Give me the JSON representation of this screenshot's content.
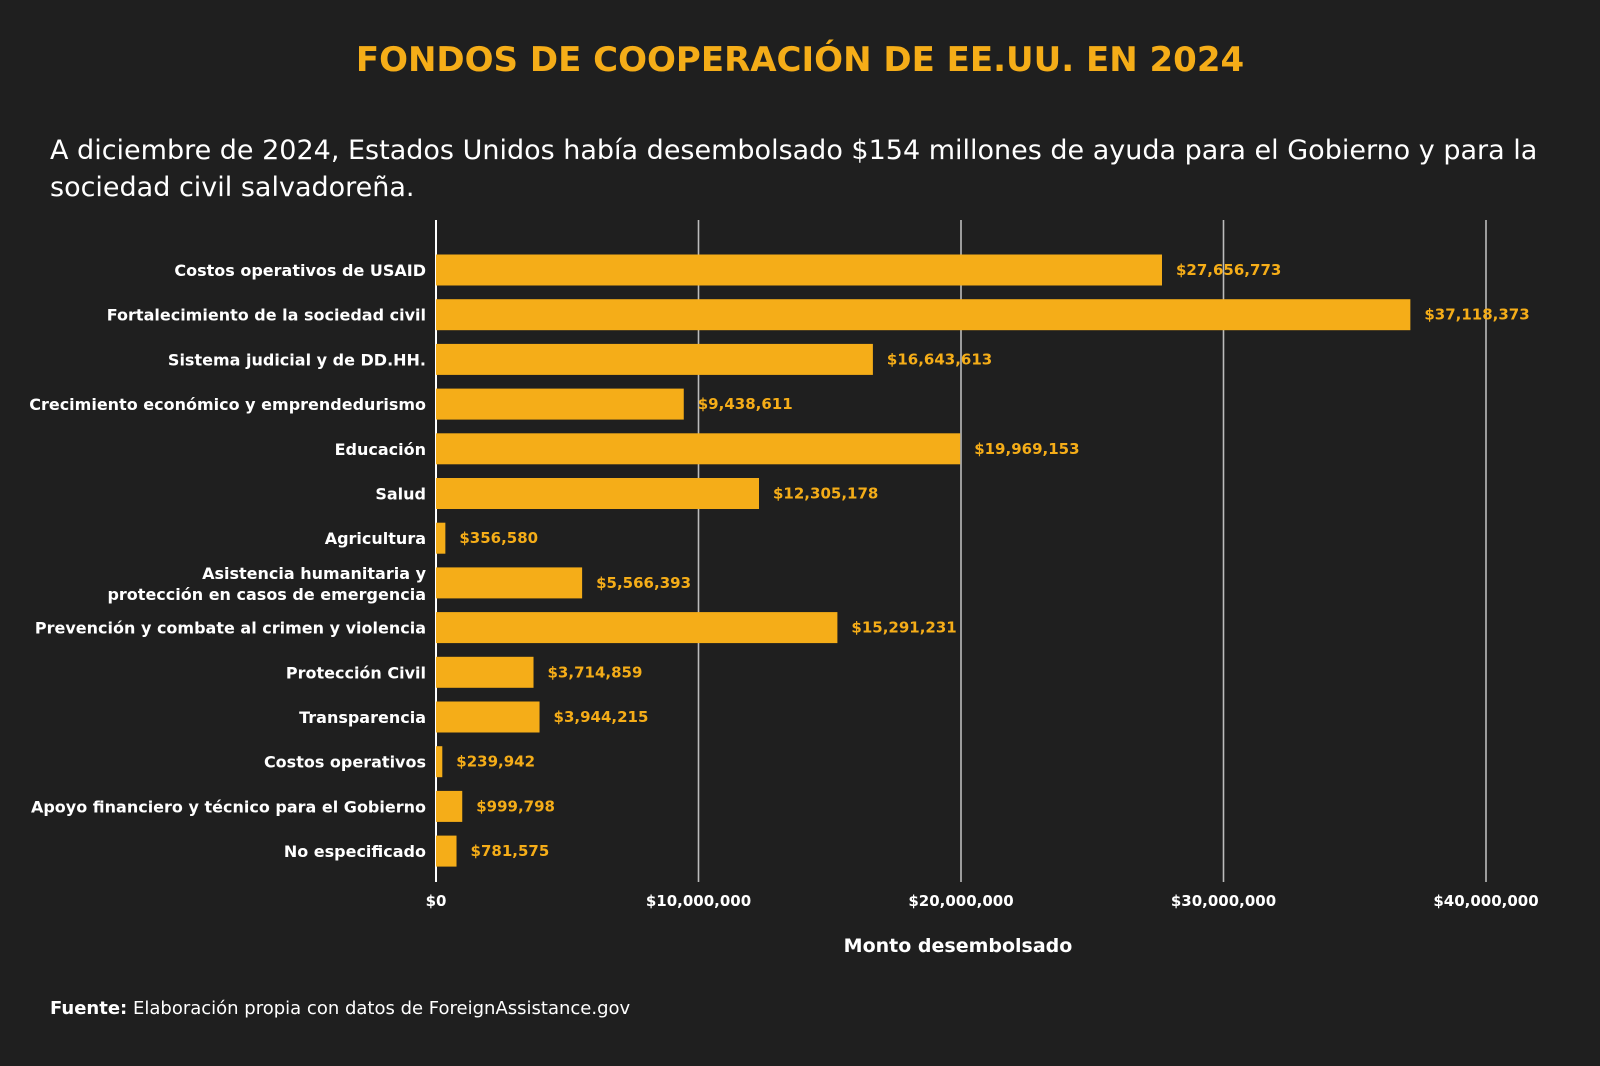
{
  "header": {
    "title": "FONDOS DE COOPERACIÓN DE EE.UU. EN 2024",
    "subtitle": "A diciembre de 2024, Estados Unidos había desembolsado $154 millones de ayuda para el Gobierno y para la sociedad civil salvadoreña."
  },
  "footer": {
    "source_label": "Fuente:",
    "source_text": "Elaboración propia con datos de ForeignAssistance.gov"
  },
  "colors": {
    "background": "#1f1f1f",
    "bar": "#f5ad18",
    "title": "#f5ad18",
    "value_label": "#f5ad18",
    "grid": "#bbbbbb",
    "text": "#ffffff"
  },
  "chart_data": {
    "type": "bar",
    "orientation": "horizontal",
    "xlabel": "Monto desembolsado",
    "ylabel": "",
    "xlim": [
      0,
      40000000
    ],
    "x_ticks": [
      0,
      10000000,
      20000000,
      30000000,
      40000000
    ],
    "x_tick_labels": [
      "$0",
      "$10,000,000",
      "$20,000,000",
      "$30,000,000",
      "$40,000,000"
    ],
    "grid": "vertical",
    "categories": [
      "Costos operativos de USAID",
      "Fortalecimiento de la sociedad civil",
      "Sistema judicial y de  DD.HH.",
      "Crecimiento económico y emprendedurismo",
      "Educación",
      "Salud",
      "Agricultura",
      "Asistencia humanitaria y\nprotección en casos de emergencia",
      "Prevención y combate al crimen y violencia",
      "Protección Civil",
      "Transparencia",
      "Costos operativos",
      "Apoyo financiero y técnico para el Gobierno",
      "No especificado"
    ],
    "values": [
      27656773,
      37118373,
      16643613,
      9438611,
      19969153,
      12305178,
      356580,
      5566393,
      15291231,
      3714859,
      3944215,
      239942,
      999798,
      781575
    ],
    "value_labels": [
      "$27,656,773",
      "$37,118,373",
      "$16,643,613",
      "$9,438,611",
      "$19,969,153",
      "$12,305,178",
      "$356,580",
      "$5,566,393",
      "$15,291,231",
      "$3,714,859",
      "$3,944,215",
      "$239,942",
      "$999,798",
      "$781,575"
    ]
  }
}
